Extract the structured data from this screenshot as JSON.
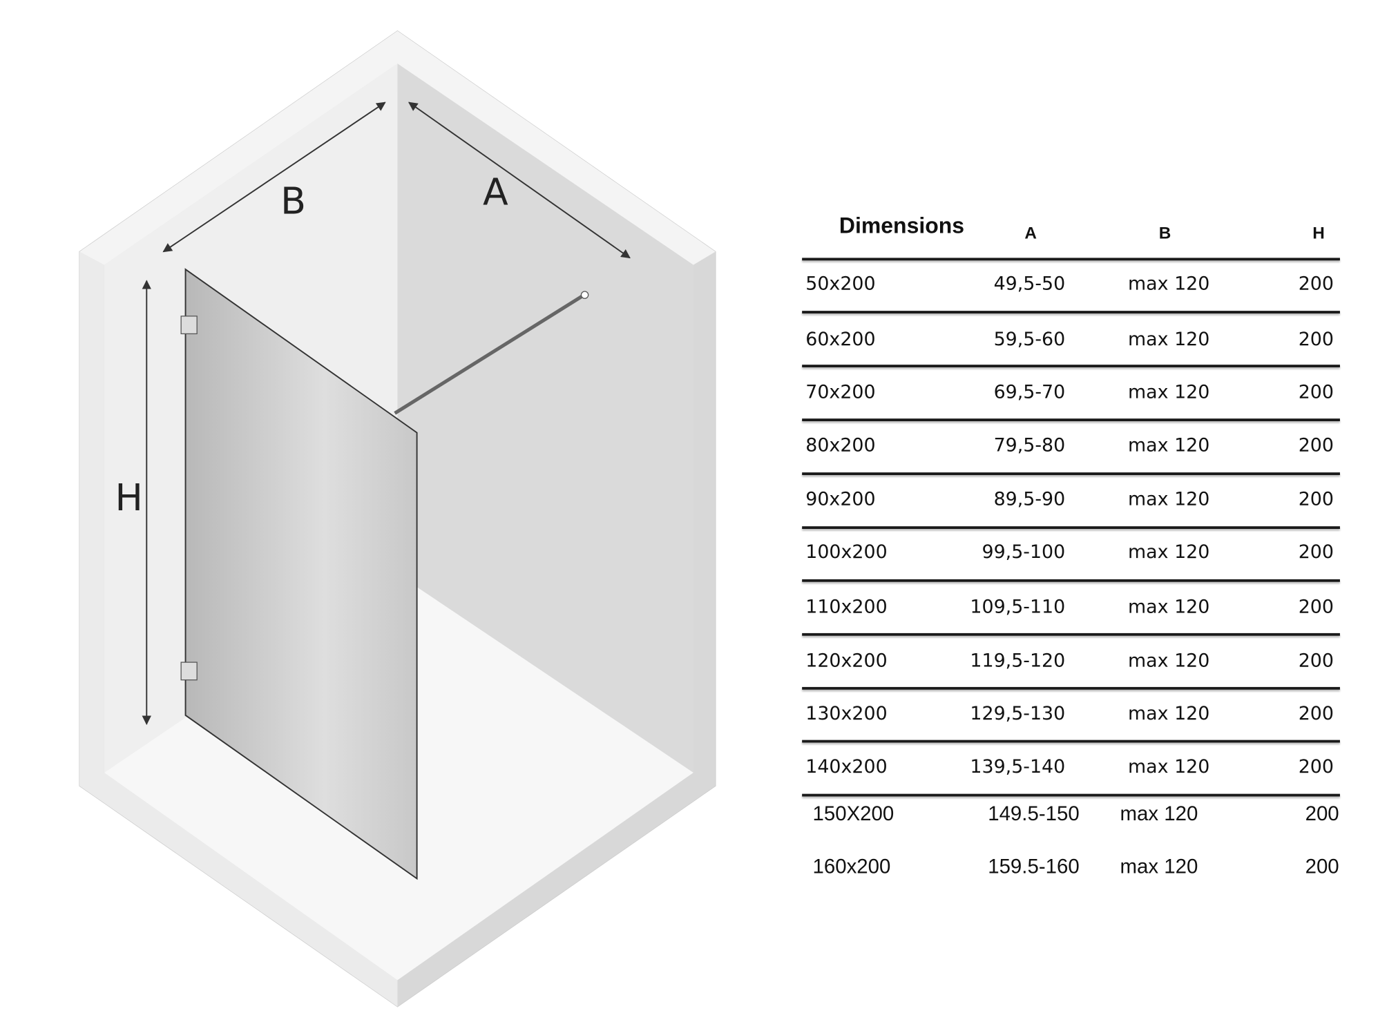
{
  "diagram": {
    "labels": {
      "a": "A",
      "b": "B",
      "h": "H"
    }
  },
  "table": {
    "headers": {
      "dimensions": "Dimensions",
      "a": "A",
      "b": "B",
      "h": "H"
    },
    "rows": [
      {
        "dim": "50x200",
        "a": "49,5-50",
        "b": "max 120",
        "h": "200"
      },
      {
        "dim": "60x200",
        "a": "59,5-60",
        "b": "max 120",
        "h": "200"
      },
      {
        "dim": "70x200",
        "a": "69,5-70",
        "b": "max 120",
        "h": "200"
      },
      {
        "dim": "80x200",
        "a": "79,5-80",
        "b": "max 120",
        "h": "200"
      },
      {
        "dim": "90x200",
        "a": "89,5-90",
        "b": "max 120",
        "h": "200"
      },
      {
        "dim": "100x200",
        "a": "99,5-100",
        "b": "max 120",
        "h": "200"
      },
      {
        "dim": "110x200",
        "a": "109,5-110",
        "b": "max 120",
        "h": "200"
      },
      {
        "dim": "120x200",
        "a": "119,5-120",
        "b": "max 120",
        "h": "200"
      },
      {
        "dim": "130x200",
        "a": "129,5-130",
        "b": "max 120",
        "h": "200"
      },
      {
        "dim": "140x200",
        "a": "139,5-140",
        "b": "max 120",
        "h": "200"
      },
      {
        "dim": "150X200",
        "a": "149.5-150",
        "b": "max 120",
        "h": "200"
      },
      {
        "dim": "160x200",
        "a": "159.5-160",
        "b": "max 120",
        "h": "200"
      }
    ]
  }
}
